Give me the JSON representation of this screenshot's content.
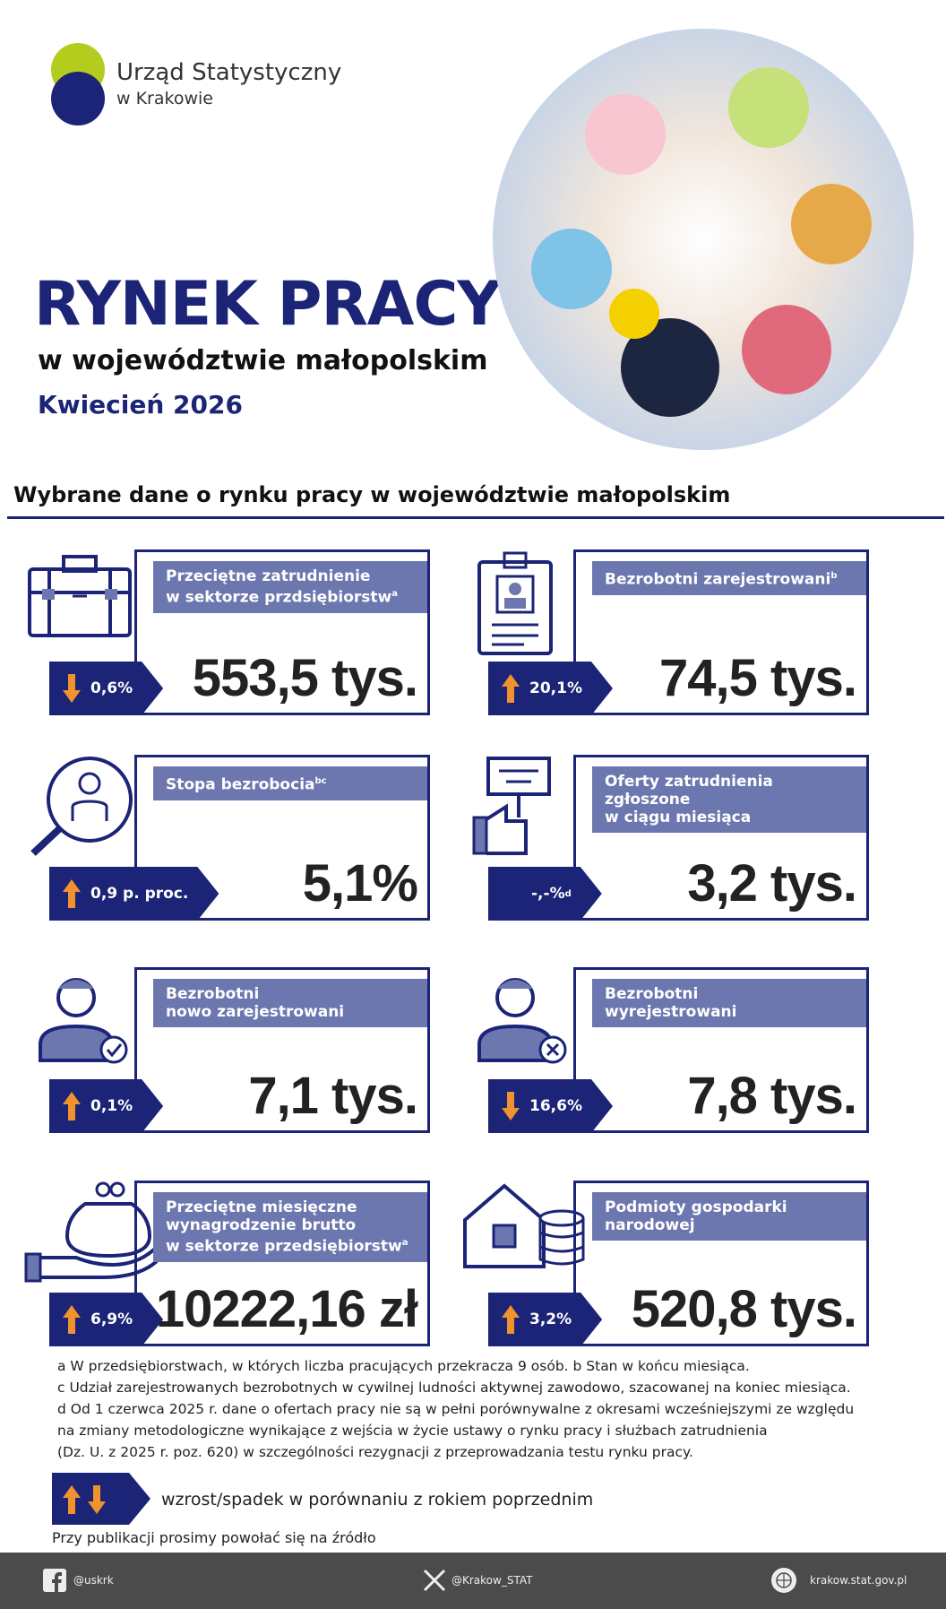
{
  "header": {
    "org_name": "Urząd Statystyczny",
    "org_sub": "w Krakowie",
    "title": "RYNEK PRACY",
    "subtitle": "w województwie małopolskim",
    "period": "Kwiecień 2026"
  },
  "section_title": "Wybrane dane o rynku pracy w województwie małopolskim",
  "cards": [
    {
      "label": [
        "Przeciętne zatrudnienie",
        "w sektorze przdsiębiorstw"
      ],
      "label_sup": "a",
      "change": "0,6%",
      "direction": "down",
      "value": "553,5 tys.",
      "icon": "briefcase"
    },
    {
      "label": [
        "Bezrobotni zarejestrowani"
      ],
      "label_sup": "b",
      "change": "20,1%",
      "direction": "up",
      "value": "74,5 tys.",
      "icon": "badge"
    },
    {
      "label": [
        "Stopa bezrobocia"
      ],
      "label_sup": "bc",
      "change": "0,9 p. proc.",
      "direction": "up",
      "value": "5,1%",
      "icon": "search"
    },
    {
      "label": [
        "Oferty zatrudnienia zgłoszone",
        "w ciągu miesiąca"
      ],
      "change": "-,-%",
      "change_sup": "d",
      "direction": "none",
      "value": "3,2 tys.",
      "icon": "sign"
    },
    {
      "label": [
        "Bezrobotni",
        "nowo zarejestrowani"
      ],
      "change": "0,1%",
      "direction": "up",
      "value": "7,1 tys.",
      "icon": "person-check"
    },
    {
      "label": [
        "Bezrobotni",
        "wyrejestrowani"
      ],
      "change": "16,6%",
      "direction": "down",
      "value": "7,8 tys.",
      "icon": "person-x"
    },
    {
      "label": [
        "Przeciętne miesięczne",
        "wynagrodzenie brutto",
        "w sektorze przedsiębiorstw"
      ],
      "label_sup": "a",
      "change": "6,9%",
      "direction": "up",
      "value": "10222,16 zł",
      "icon": "wallet"
    },
    {
      "label": [
        "Podmioty gospodarki",
        "narodowej"
      ],
      "change": "3,2%",
      "direction": "up",
      "value": "520,8 tys.",
      "icon": "house"
    }
  ],
  "footnotes": [
    "a W przedsiębiorstwach, w których liczba pracujących przekracza 9 osób.   b Stan w końcu miesiąca.",
    "c Udział zarejestrowanych bezrobotnych w cywilnej ludności aktywnej zawodowo, szacowanej na koniec miesiąca.",
    "d Od 1 czerwca 2025 r. dane o ofertach pracy nie są w pełni porównywalne z okresami wcześniejszymi ze względu",
    "na zmiany metodologiczne wynikające z wejścia w życie ustawy o rynku pracy i służbach zatrudnienia",
    "(Dz. U. z 2025 r. poz. 620) w szczególności rezygnacji z przeprowadzania testu rynku pracy."
  ],
  "legend": "wzrost/spadek w porównaniu z rokiem poprzednim",
  "source_note": "Przy publikacji prosimy powołać się na źródło",
  "footer": {
    "facebook": "@uskrk",
    "x": "@Krakow_STAT",
    "website": "krakow.stat.gov.pl"
  }
}
